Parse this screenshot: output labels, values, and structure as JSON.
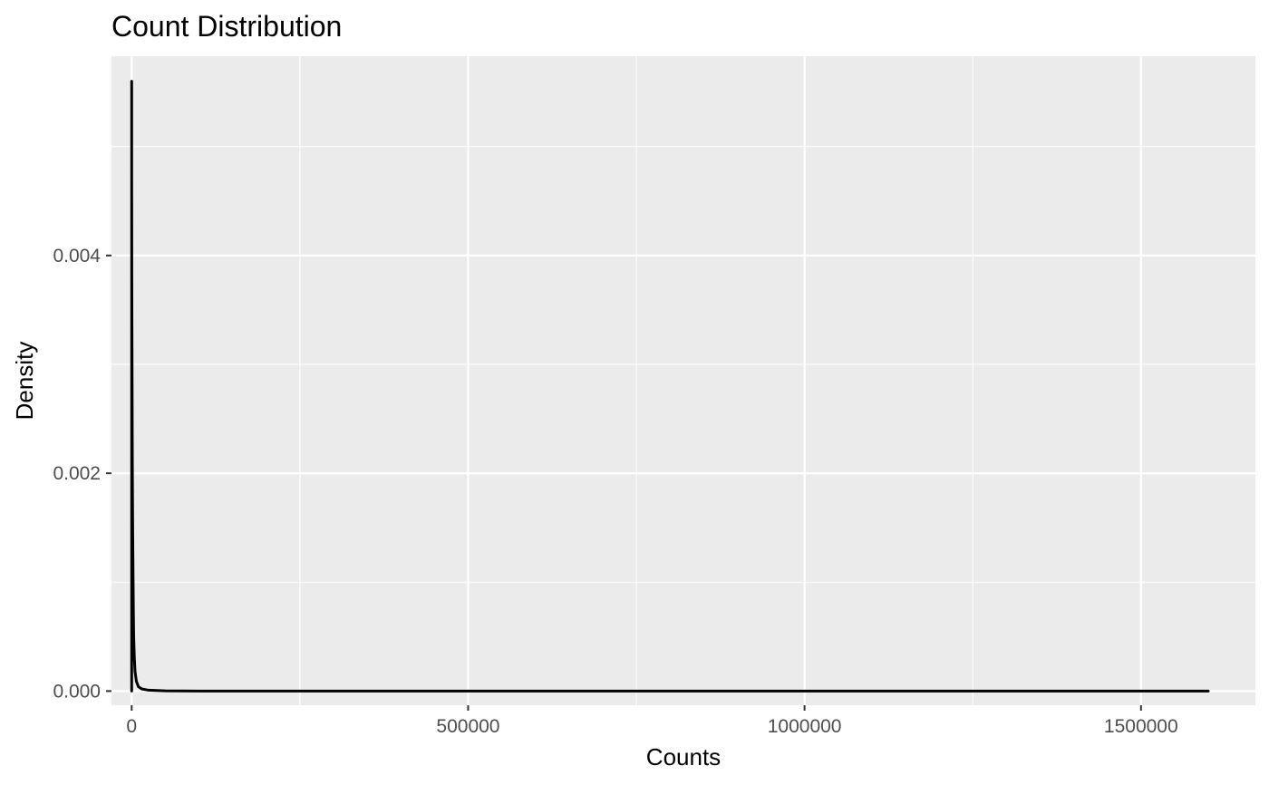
{
  "chart_data": {
    "type": "line",
    "title": "Count Distribution",
    "xlabel": "Counts",
    "ylabel": "Density",
    "xlim": [
      -30000,
      1670000
    ],
    "ylim": [
      -0.00013,
      0.00583
    ],
    "x_ticks": [
      {
        "value": 0,
        "label": "0"
      },
      {
        "value": 500000,
        "label": "500000"
      },
      {
        "value": 1000000,
        "label": "1000000"
      },
      {
        "value": 1500000,
        "label": "1500000"
      }
    ],
    "y_ticks": [
      {
        "value": 0,
        "label": "0.000"
      },
      {
        "value": 0.002,
        "label": "0.002"
      },
      {
        "value": 0.004,
        "label": "0.004"
      }
    ],
    "x_minor": [
      250000,
      750000,
      1250000
    ],
    "y_minor": [
      0.001,
      0.003,
      0.005
    ],
    "grid": true,
    "legend": "none",
    "colors": {
      "panel": "#ebebeb",
      "grid": "#ffffff",
      "line": "#000000",
      "tick_text": "#4d4d4d"
    },
    "series": [
      {
        "x": [
          0,
          0,
          0,
          0,
          100,
          200,
          400,
          600,
          800,
          1000,
          1500,
          2000,
          2500,
          3000,
          4000,
          5000,
          7000,
          10000,
          15000,
          25000,
          50000,
          100000,
          1600000
        ],
        "y": [
          0,
          0.0056,
          0.0052,
          0.0048,
          0.0044,
          0.0038,
          0.0033,
          0.0029,
          0.0025,
          0.0021,
          0.0015,
          0.0011,
          0.00075,
          0.0005,
          0.0003,
          0.00018,
          9e-05,
          4e-05,
          2e-05,
          8e-06,
          2e-06,
          0,
          0
        ]
      }
    ]
  }
}
